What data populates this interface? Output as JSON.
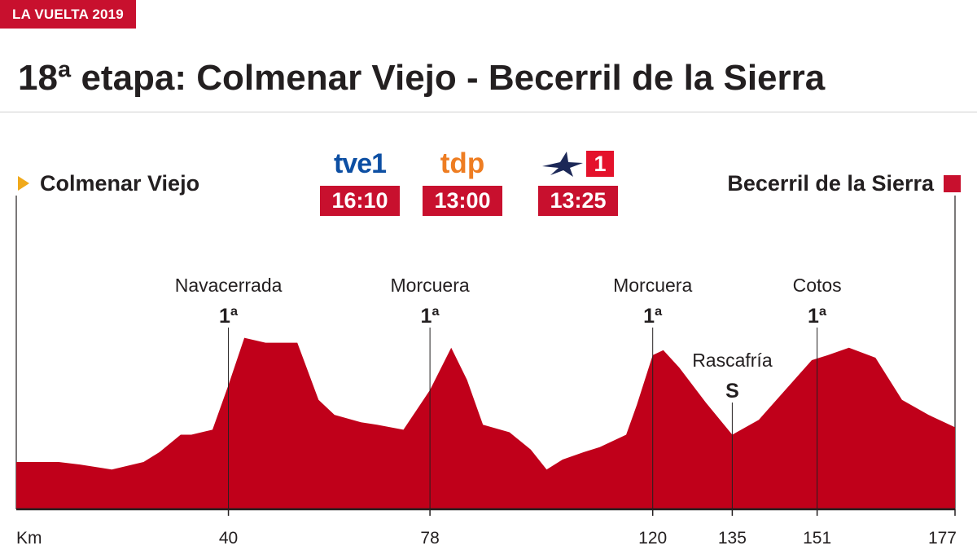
{
  "header": {
    "badge": "LA VUELTA 2019",
    "title": "18ª etapa: Colmenar Viejo - Becerril de la Sierra"
  },
  "start": {
    "label": "Colmenar Viejo"
  },
  "finish": {
    "label": "Becerril de la Sierra"
  },
  "broadcasts": [
    {
      "channel": "tve1",
      "logo_text": "tve1",
      "time": "16:10",
      "color": "#0d4fa3"
    },
    {
      "channel": "tdp",
      "logo_text": "tdp",
      "time": "13:00",
      "color": "#ee7d22"
    },
    {
      "channel": "eurosport-1",
      "logo_text": "1",
      "time": "13:25",
      "color": "#e4122b"
    }
  ],
  "colors": {
    "accent": "#c8102e",
    "profile_fill": "#c0001a",
    "start_marker": "#f0a91b"
  },
  "chart_data": {
    "type": "area",
    "x_unit_label": "Km",
    "xlim": [
      0,
      177
    ],
    "x_ticks": [
      40,
      78,
      120,
      135,
      151,
      177
    ],
    "grid": false,
    "profile": {
      "x": [
        0,
        8,
        12,
        18,
        24,
        27,
        31,
        33,
        37,
        40,
        43,
        47,
        53,
        57,
        60,
        65,
        68,
        73,
        78,
        82,
        85,
        88,
        93,
        97,
        100,
        103,
        107,
        110,
        115,
        117,
        120,
        122,
        125,
        130,
        135,
        140,
        145,
        150,
        153,
        157,
        162,
        167,
        172,
        177
      ],
      "y": [
        19,
        19,
        18,
        16,
        19,
        23,
        30,
        30,
        32,
        50,
        69,
        67,
        67,
        44,
        38,
        35,
        34,
        32,
        48,
        65,
        52,
        34,
        31,
        24,
        16,
        20,
        23,
        25,
        30,
        42,
        62,
        64,
        57,
        43,
        30,
        36,
        48,
        60,
        62,
        65,
        61,
        44,
        38,
        33
      ]
    },
    "climbs": [
      {
        "name": "Navacerrada",
        "category": "1ª",
        "km": 40
      },
      {
        "name": "Morcuera",
        "category": "1ª",
        "km": 78
      },
      {
        "name": "Morcuera",
        "category": "1ª",
        "km": 120
      },
      {
        "name": "Rascafría",
        "category": "S",
        "km": 135
      },
      {
        "name": "Cotos",
        "category": "1ª",
        "km": 151
      }
    ]
  }
}
